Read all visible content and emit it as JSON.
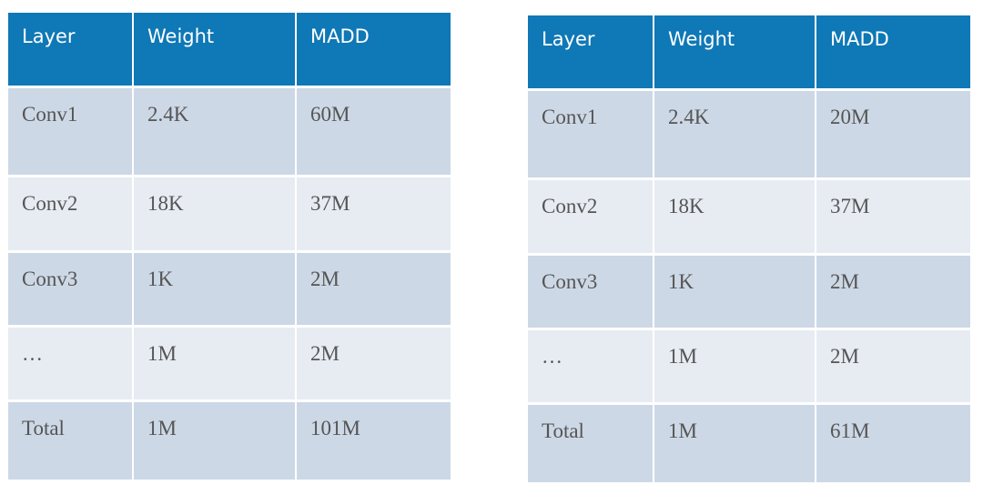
{
  "tables": [
    {
      "header": [
        "Layer",
        "Weight",
        "MADD"
      ],
      "rows": [
        [
          "Conv1",
          "2.4K",
          "60M"
        ],
        [
          "Conv2",
          "18K",
          "37M"
        ],
        [
          "Conv3",
          "1K",
          "2M"
        ],
        [
          "…",
          "1M",
          "2M"
        ],
        [
          "Total",
          "1M",
          "101M"
        ]
      ]
    },
    {
      "header": [
        "Layer",
        "Weight",
        "MADD"
      ],
      "rows": [
        [
          "Conv1",
          "2.4K",
          "20M"
        ],
        [
          "Conv2",
          "18K",
          "37M"
        ],
        [
          "Conv3",
          "1K",
          "2M"
        ],
        [
          "…",
          "1M",
          "2M"
        ],
        [
          "Total",
          "1M",
          "61M"
        ]
      ]
    }
  ]
}
